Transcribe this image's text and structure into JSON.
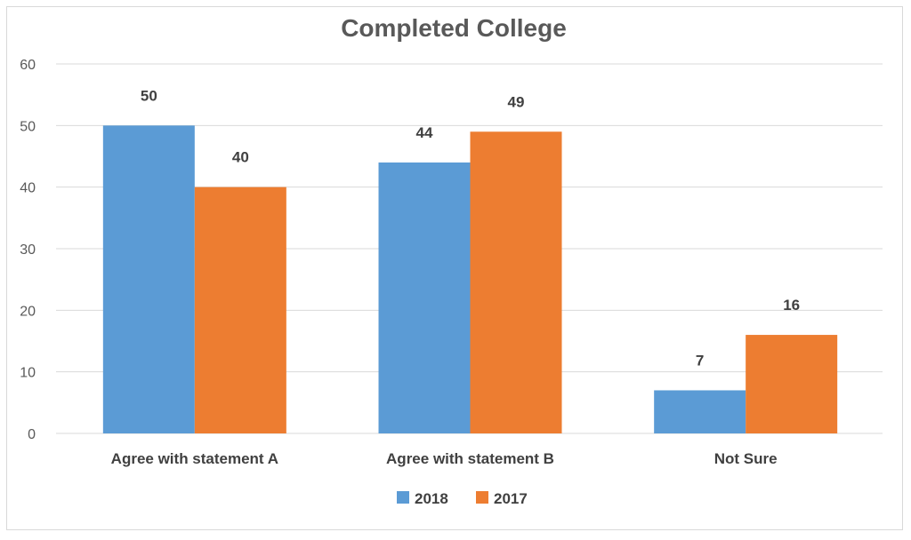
{
  "chart_data": {
    "type": "bar",
    "title": "Completed College",
    "categories": [
      "Agree with statement A",
      "Agree with statement B",
      "Not Sure"
    ],
    "series": [
      {
        "name": "2018",
        "values": [
          50,
          44,
          7
        ],
        "color": "#5B9BD5"
      },
      {
        "name": "2017",
        "values": [
          40,
          49,
          16
        ],
        "color": "#ED7D31"
      }
    ],
    "ylim": [
      0,
      60
    ],
    "yticks": [
      0,
      10,
      20,
      30,
      40,
      50,
      60
    ],
    "grid": true,
    "legend": "bottom",
    "data_labels": true
  }
}
